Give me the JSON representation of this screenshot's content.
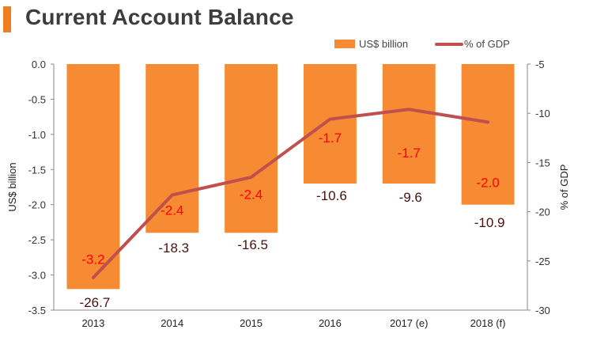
{
  "page": {
    "title": "Current Account Balance",
    "accent_color": "#f07f22"
  },
  "chart_data": {
    "type": "bar",
    "title": "Current Account Balance",
    "categories": [
      "2013",
      "2014",
      "2015",
      "2016",
      "2017 (e)",
      "2018 (f)"
    ],
    "series": [
      {
        "name": "US$ billion",
        "type": "bar",
        "axis": "left",
        "values": [
          -3.2,
          -2.4,
          -2.4,
          -1.7,
          -1.7,
          -2.0
        ],
        "labels": [
          "-3.2",
          "-2.4",
          "-2.4",
          "-1.7",
          "-1.7",
          "-2.0"
        ],
        "color": "#f68b33",
        "label_color": "#ff0000"
      },
      {
        "name": "% of GDP",
        "type": "line",
        "axis": "right",
        "values": [
          -26.7,
          -18.3,
          -16.5,
          -10.6,
          -9.6,
          -10.9
        ],
        "labels": [
          "-26.7",
          "-18.3",
          "-16.5",
          "-10.6",
          "-9.6",
          "-10.9"
        ],
        "color": "#c0504d",
        "label_color": "#4a1010"
      }
    ],
    "y_left": {
      "label": "US$ billion",
      "range": [
        -3.5,
        0.0
      ],
      "ticks": [
        "0.0",
        "-0.5",
        "-1.0",
        "-1.5",
        "-2.0",
        "-2.5",
        "-3.0",
        "-3.5"
      ]
    },
    "y_right": {
      "label": "% of GDP",
      "range": [
        -30,
        -5
      ],
      "ticks": [
        "-5",
        "-10",
        "-15",
        "-20",
        "-25",
        "-30"
      ]
    },
    "legend_position": "top-right",
    "grid": false
  }
}
